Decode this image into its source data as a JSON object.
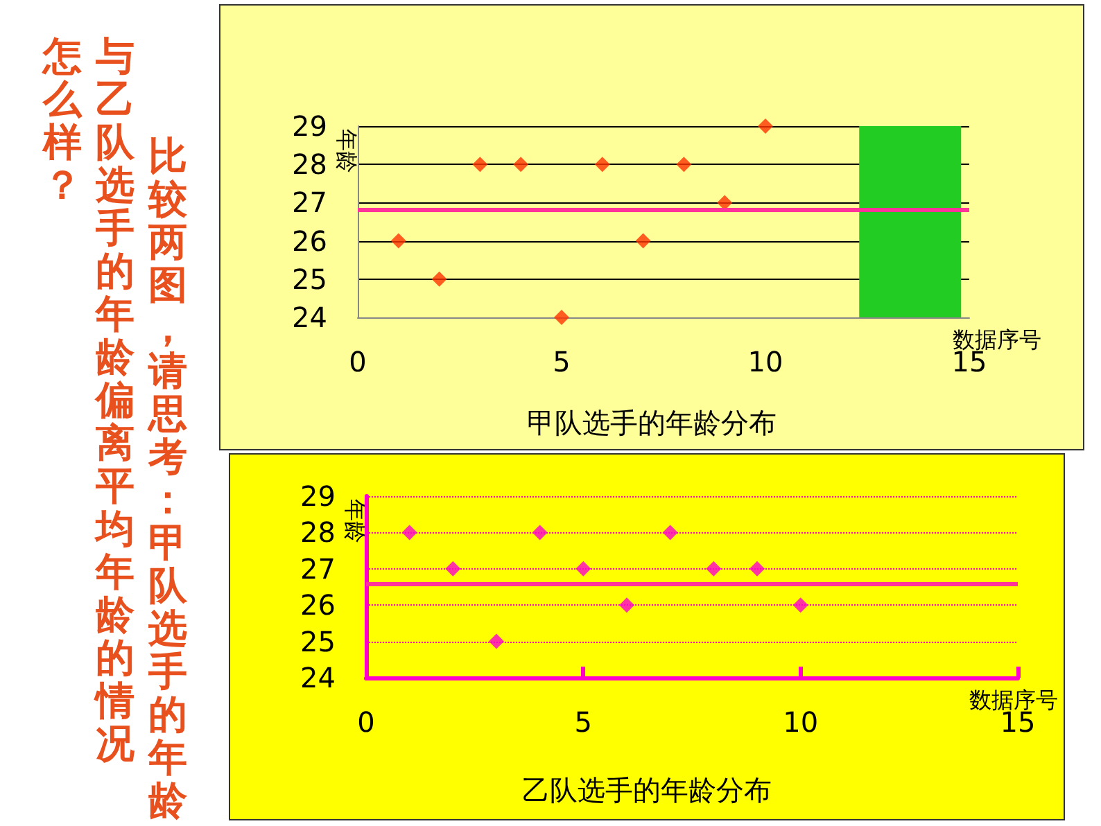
{
  "chart_data": [
    {
      "type": "scatter",
      "title": "甲队选手的年龄分布",
      "xlabel": "数据序号",
      "ylabel": "年龄",
      "x": [
        1,
        2,
        3,
        4,
        5,
        6,
        7,
        8,
        9,
        10
      ],
      "series": [
        {
          "color": "#ff3300",
          "values": [
            26,
            25,
            28,
            28,
            24,
            28,
            26,
            28,
            27,
            29
          ]
        }
      ],
      "xlim": [
        0,
        15
      ],
      "xticks": [
        0,
        5,
        10,
        15
      ],
      "ylim": [
        24,
        29
      ],
      "yticks": [
        24,
        25,
        26,
        27,
        28,
        29
      ],
      "grid": "y",
      "marker": "diamond",
      "ref_lines": [
        {
          "axis": "y",
          "value": 26.8,
          "color": "#ff3399"
        }
      ],
      "bands": [
        {
          "axis": "x",
          "from": 12.3,
          "to": 14.8,
          "color": "#22cc22"
        }
      ],
      "annotations": [
        "比较两图，请思考：甲队选手的年龄",
        "与乙队选手的年龄偏离平均年龄的情况",
        "怎么样？"
      ]
    },
    {
      "type": "scatter",
      "title": "乙队选手的年龄分布",
      "xlabel": "数据序号",
      "ylabel": "年龄",
      "x": [
        1,
        2,
        3,
        4,
        5,
        6,
        7,
        8,
        9,
        10
      ],
      "series": [
        {
          "color": "#ff00cc",
          "values": [
            28,
            27,
            25,
            28,
            27,
            26,
            28,
            27,
            27,
            26
          ]
        }
      ],
      "xlim": [
        0,
        15
      ],
      "xticks": [
        0,
        5,
        10,
        15
      ],
      "ylim": [
        24,
        29
      ],
      "yticks": [
        24,
        25,
        26,
        27,
        28,
        29
      ],
      "grid": "y",
      "marker": "diamond",
      "ref_lines": [
        {
          "axis": "y",
          "value": 26.6,
          "color": "#ff3399"
        }
      ]
    }
  ]
}
